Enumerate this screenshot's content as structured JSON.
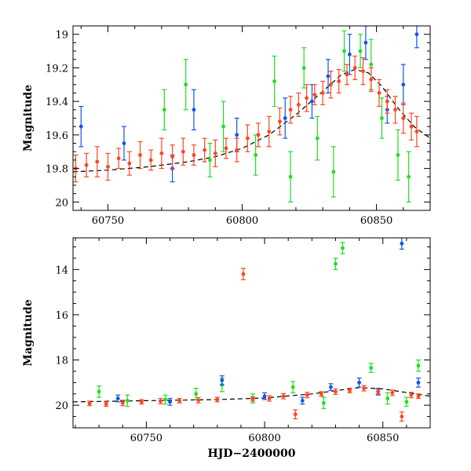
{
  "chart_data": [
    {
      "type": "scatter",
      "title": "",
      "xlabel": "",
      "ylabel": "Magnitude",
      "xlim": [
        60737,
        60870
      ],
      "ylim": [
        20.05,
        18.95
      ],
      "y_inverted": true,
      "grid": false,
      "legend": "none",
      "xticks": [
        60750,
        60800,
        60850
      ],
      "xtick_labels": [
        "60750",
        "60800",
        "60850"
      ],
      "yticks": [
        19,
        19.2,
        19.4,
        19.6,
        19.8,
        20
      ],
      "ytick_labels": [
        "19",
        "19.2",
        "19.4",
        "19.6",
        "19.8",
        "20"
      ],
      "series": [
        {
          "color": "#ff4422",
          "marker": "circle",
          "error_bars": true,
          "points": [
            [
              60738,
              19.8,
              0.08
            ],
            [
              60742,
              19.78,
              0.07
            ],
            [
              60746,
              19.76,
              0.09
            ],
            [
              60750,
              19.79,
              0.08
            ],
            [
              60754,
              19.74,
              0.06
            ],
            [
              60758,
              19.77,
              0.07
            ],
            [
              60762,
              19.72,
              0.08
            ],
            [
              60766,
              19.75,
              0.06
            ],
            [
              60770,
              19.71,
              0.09
            ],
            [
              60774,
              19.73,
              0.07
            ],
            [
              60778,
              19.7,
              0.08
            ],
            [
              60782,
              19.72,
              0.06
            ],
            [
              60786,
              19.69,
              0.07
            ],
            [
              60790,
              19.71,
              0.08
            ],
            [
              60794,
              19.68,
              0.06
            ],
            [
              60798,
              19.69,
              0.07
            ],
            [
              60802,
              19.62,
              0.08
            ],
            [
              60806,
              19.6,
              0.07
            ],
            [
              60810,
              19.58,
              0.09
            ],
            [
              60814,
              19.52,
              0.08
            ],
            [
              60818,
              19.45,
              0.08
            ],
            [
              60821,
              19.42,
              0.07
            ],
            [
              60824,
              19.38,
              0.08
            ],
            [
              60827,
              19.36,
              0.06
            ],
            [
              60830,
              19.35,
              0.07
            ],
            [
              60833,
              19.3,
              0.08
            ],
            [
              60836,
              19.28,
              0.07
            ],
            [
              60839,
              19.24,
              0.06
            ],
            [
              60842,
              19.2,
              0.07
            ],
            [
              60845,
              19.22,
              0.08
            ],
            [
              60848,
              19.27,
              0.07
            ],
            [
              60851,
              19.35,
              0.08
            ],
            [
              60854,
              19.4,
              0.07
            ],
            [
              60857,
              19.45,
              0.08
            ],
            [
              60860,
              19.5,
              0.09
            ],
            [
              60863,
              19.55,
              0.08
            ],
            [
              60865,
              19.58,
              0.09
            ]
          ]
        },
        {
          "color": "#22dd22",
          "marker": "circle",
          "error_bars": true,
          "points": [
            [
              60771,
              19.45,
              0.12
            ],
            [
              60779,
              19.3,
              0.15
            ],
            [
              60788,
              19.75,
              0.1
            ],
            [
              60793,
              19.55,
              0.15
            ],
            [
              60805,
              19.72,
              0.12
            ],
            [
              60812,
              19.28,
              0.15
            ],
            [
              60818,
              19.85,
              0.15
            ],
            [
              60823,
              19.2,
              0.12
            ],
            [
              60828,
              19.62,
              0.13
            ],
            [
              60834,
              19.82,
              0.15
            ],
            [
              60838,
              19.1,
              0.12
            ],
            [
              60844,
              19.1,
              0.1
            ],
            [
              60848,
              19.18,
              0.15
            ],
            [
              60852,
              19.5,
              0.12
            ],
            [
              60858,
              19.72,
              0.15
            ],
            [
              60862,
              19.85,
              0.15
            ]
          ]
        },
        {
          "color": "#1155ee",
          "marker": "circle",
          "error_bars": true,
          "points": [
            [
              60740,
              19.55,
              0.12
            ],
            [
              60756,
              19.65,
              0.1
            ],
            [
              60774,
              19.8,
              0.08
            ],
            [
              60782,
              19.45,
              0.12
            ],
            [
              60798,
              19.6,
              0.1
            ],
            [
              60816,
              19.5,
              0.12
            ],
            [
              60826,
              19.4,
              0.1
            ],
            [
              60832,
              19.25,
              0.1
            ],
            [
              60840,
              19.12,
              0.12
            ],
            [
              60846,
              19.05,
              0.1
            ],
            [
              60854,
              19.45,
              0.08
            ],
            [
              60860,
              19.3,
              0.12
            ],
            [
              60865,
              19.0,
              0.08
            ]
          ]
        }
      ],
      "model_curve": {
        "style": "dashed",
        "color": "#000000",
        "points": [
          [
            60737,
            19.82
          ],
          [
            60750,
            19.81
          ],
          [
            60765,
            19.79
          ],
          [
            60780,
            19.76
          ],
          [
            60790,
            19.73
          ],
          [
            60800,
            19.68
          ],
          [
            60810,
            19.6
          ],
          [
            60820,
            19.48
          ],
          [
            60830,
            19.34
          ],
          [
            60837,
            19.24
          ],
          [
            60842,
            19.21
          ],
          [
            60847,
            19.23
          ],
          [
            60852,
            19.31
          ],
          [
            60858,
            19.44
          ],
          [
            60864,
            19.55
          ],
          [
            60870,
            19.62
          ]
        ]
      }
    },
    {
      "type": "scatter",
      "title": "",
      "xlabel": "HJD−2400000",
      "ylabel": "Magnitude",
      "xlim": [
        60719,
        60870
      ],
      "ylim": [
        21.0,
        12.6
      ],
      "y_inverted": true,
      "grid": false,
      "legend": "none",
      "xticks": [
        60750,
        60800,
        60850
      ],
      "xtick_labels": [
        "60750",
        "60800",
        "60850"
      ],
      "yticks": [
        14,
        16,
        18,
        20
      ],
      "ytick_labels": [
        "14",
        "16",
        "18",
        "20"
      ],
      "series": [
        {
          "color": "#ff4422",
          "marker": "circle",
          "error_bars": true,
          "points": [
            [
              60726,
              19.92,
              0.1
            ],
            [
              60733,
              19.95,
              0.1
            ],
            [
              60740,
              19.9,
              0.12
            ],
            [
              60748,
              19.85,
              0.1
            ],
            [
              60756,
              19.82,
              0.12
            ],
            [
              60764,
              19.8,
              0.1
            ],
            [
              60772,
              19.78,
              0.12
            ],
            [
              60780,
              19.75,
              0.1
            ],
            [
              60791,
              14.2,
              0.25
            ],
            [
              60795,
              19.72,
              0.1
            ],
            [
              60802,
              19.7,
              0.12
            ],
            [
              60808,
              19.6,
              0.12
            ],
            [
              60813,
              20.4,
              0.2
            ],
            [
              60818,
              19.55,
              0.12
            ],
            [
              60824,
              19.5,
              0.1
            ],
            [
              60830,
              19.4,
              0.12
            ],
            [
              60836,
              19.35,
              0.1
            ],
            [
              60842,
              19.25,
              0.12
            ],
            [
              60848,
              19.4,
              0.1
            ],
            [
              60854,
              19.45,
              0.12
            ],
            [
              60858,
              20.5,
              0.2
            ],
            [
              60862,
              19.55,
              0.12
            ],
            [
              60865,
              19.6,
              0.1
            ]
          ]
        },
        {
          "color": "#22dd22",
          "marker": "circle",
          "error_bars": true,
          "points": [
            [
              60730,
              19.4,
              0.25
            ],
            [
              60742,
              19.8,
              0.25
            ],
            [
              60758,
              19.75,
              0.2
            ],
            [
              60771,
              19.5,
              0.25
            ],
            [
              60782,
              19.1,
              0.3
            ],
            [
              60795,
              19.7,
              0.2
            ],
            [
              60812,
              19.2,
              0.25
            ],
            [
              60825,
              19.9,
              0.25
            ],
            [
              60830,
              13.75,
              0.25
            ],
            [
              60833,
              13.05,
              0.25
            ],
            [
              60845,
              18.35,
              0.2
            ],
            [
              60852,
              19.7,
              0.25
            ],
            [
              60860,
              19.85,
              0.2
            ],
            [
              60865,
              18.25,
              0.25
            ]
          ]
        },
        {
          "color": "#1155ee",
          "marker": "circle",
          "error_bars": true,
          "points": [
            [
              60738,
              19.7,
              0.15
            ],
            [
              60760,
              19.85,
              0.15
            ],
            [
              60782,
              18.9,
              0.2
            ],
            [
              60800,
              19.6,
              0.15
            ],
            [
              60816,
              19.8,
              0.15
            ],
            [
              60828,
              19.2,
              0.15
            ],
            [
              60840,
              19.0,
              0.2
            ],
            [
              60848,
              19.4,
              0.15
            ],
            [
              60858,
              12.85,
              0.25
            ],
            [
              60865,
              19.0,
              0.2
            ]
          ]
        }
      ],
      "model_curve": {
        "style": "dashed",
        "color": "#000000",
        "points": [
          [
            60719,
            19.85
          ],
          [
            60750,
            19.8
          ],
          [
            60780,
            19.75
          ],
          [
            60800,
            19.68
          ],
          [
            60820,
            19.5
          ],
          [
            60840,
            19.22
          ],
          [
            60850,
            19.28
          ],
          [
            60870,
            19.6
          ]
        ]
      }
    }
  ]
}
